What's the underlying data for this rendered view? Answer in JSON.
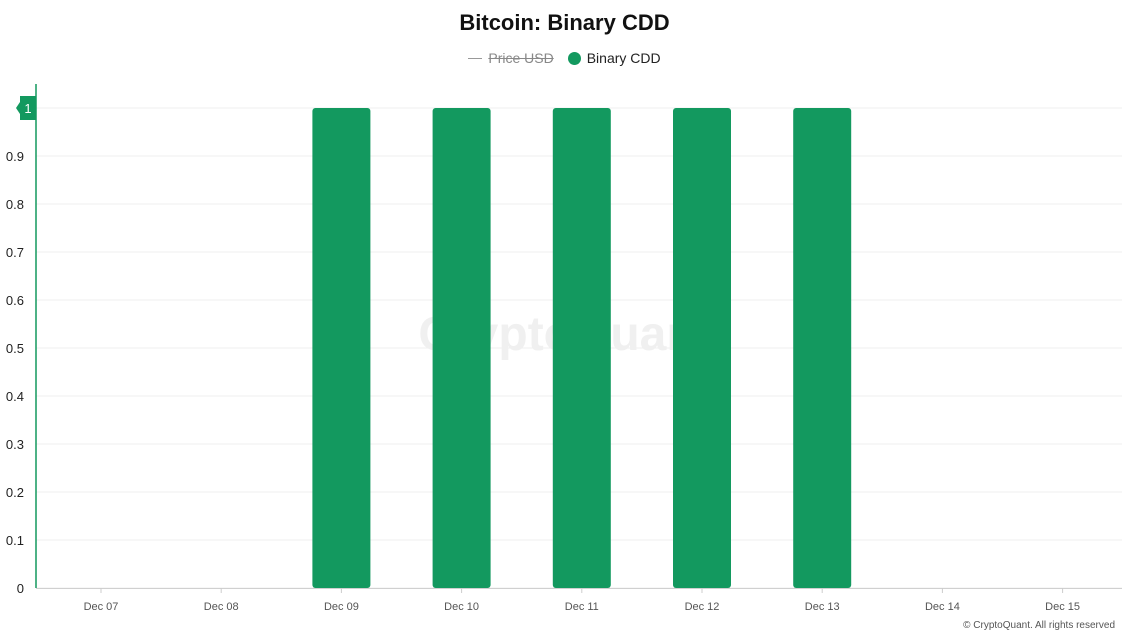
{
  "title": "Bitcoin: Binary CDD",
  "legend": [
    {
      "label": "Price USD",
      "hidden": true,
      "symbol": "line",
      "color": "#999999"
    },
    {
      "label": "Binary CDD",
      "hidden": false,
      "symbol": "dot",
      "color": "#13995f"
    }
  ],
  "watermark": "CryptoQuant",
  "credit": "© CryptoQuant. All rights reserved",
  "chart_data": {
    "type": "bar",
    "title": "Bitcoin: Binary CDD",
    "xlabel": "",
    "ylabel": "",
    "categories": [
      "Dec 07",
      "Dec 08",
      "Dec 09",
      "Dec 10",
      "Dec 11",
      "Dec 12",
      "Dec 13",
      "Dec 14",
      "Dec 15"
    ],
    "series": [
      {
        "name": "Binary CDD",
        "color": "#13995f",
        "values": [
          0,
          0,
          1,
          1,
          1,
          1,
          1,
          0,
          0
        ]
      }
    ],
    "ylim": [
      0,
      1
    ],
    "yticks": [
      "0",
      "0.1",
      "0.2",
      "0.3",
      "0.4",
      "0.5",
      "0.6",
      "0.7",
      "0.8",
      "0.9"
    ],
    "current_value_label": "1",
    "grid": true,
    "legend_position": "top-center"
  }
}
